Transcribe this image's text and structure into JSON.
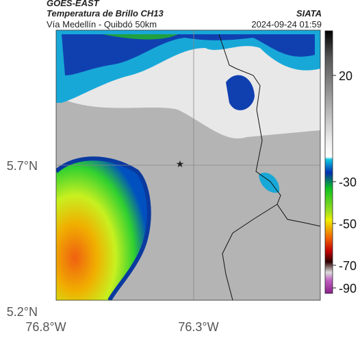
{
  "header": {
    "source": "GOES-EAST",
    "title": "Temperatura de Brillo CH13",
    "brand": "SIATA",
    "subtitle": "Vía Medellín - Quibdó 50km",
    "timestamp": "2024-09-24 01:59"
  },
  "map": {
    "lat_labels": [
      "5.7°N",
      "5.2°N"
    ],
    "lon_labels": [
      "76.8°W",
      "76.3°W"
    ]
  },
  "colorbar": {
    "ticks": [
      20,
      -30,
      -50,
      -70,
      -90
    ]
  }
}
